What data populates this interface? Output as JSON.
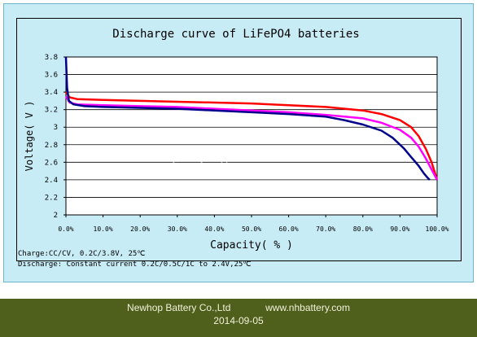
{
  "chart_data": {
    "type": "line",
    "title": "Discharge curve of LiFePO4 batteries",
    "xlabel": "Capacity( % )",
    "ylabel": "Voltage( V )",
    "xlim": [
      0,
      100
    ],
    "ylim": [
      2,
      3.8
    ],
    "x_ticks": [
      "0.0%",
      "10.0%",
      "20.0%",
      "30.0%",
      "40.0%",
      "50.0%",
      "60.0%",
      "70.0%",
      "80.0%",
      "90.0%",
      "100.0%"
    ],
    "y_ticks": [
      "2",
      "2.2",
      "2.4",
      "2.6",
      "2.8",
      "3",
      "3.2",
      "3.4",
      "3.6",
      "3.8"
    ],
    "grid": true,
    "series": [
      {
        "color": "#ff0000",
        "x": [
          0,
          1,
          3,
          10,
          20,
          30,
          40,
          50,
          60,
          70,
          80,
          85,
          90,
          93,
          95,
          97,
          98.5,
          100
        ],
        "y": [
          3.4,
          3.34,
          3.32,
          3.31,
          3.3,
          3.29,
          3.28,
          3.27,
          3.25,
          3.23,
          3.19,
          3.15,
          3.08,
          3.0,
          2.9,
          2.75,
          2.6,
          2.4
        ]
      },
      {
        "color": "#ff00ff",
        "x": [
          0,
          1,
          3,
          10,
          20,
          30,
          40,
          50,
          60,
          70,
          80,
          85,
          90,
          93,
          95,
          97,
          99,
          100
        ],
        "y": [
          3.35,
          3.28,
          3.26,
          3.25,
          3.24,
          3.23,
          3.21,
          3.19,
          3.17,
          3.14,
          3.1,
          3.05,
          2.97,
          2.88,
          2.78,
          2.64,
          2.48,
          2.4
        ]
      },
      {
        "color": "#00008b",
        "x": [
          0,
          0.3,
          0.8,
          2,
          5,
          10,
          20,
          30,
          40,
          50,
          60,
          70,
          75,
          80,
          85,
          88,
          91,
          93,
          95,
          96.5,
          97.5,
          98
        ],
        "y": [
          3.8,
          3.45,
          3.3,
          3.26,
          3.24,
          3.23,
          3.22,
          3.21,
          3.19,
          3.17,
          3.15,
          3.12,
          3.08,
          3.03,
          2.96,
          2.88,
          2.76,
          2.66,
          2.56,
          2.47,
          2.42,
          2.4
        ]
      }
    ]
  },
  "notes": {
    "charge": "Charge:CC/CV, 0.2C/3.8V, 25℃",
    "discharge": "Discharge: Constant current 0.2C/0.5C/1C to 2.4V,25℃"
  },
  "watermark": "lipobattery.com.en",
  "footer": {
    "company": "Newhop Battery Co.,Ltd",
    "website": "www.nhbattery.com",
    "date": "2014-09-05"
  },
  "colors": {
    "panel_bg": "#c8ecf6",
    "footer_bg": "#4f5f1c"
  }
}
